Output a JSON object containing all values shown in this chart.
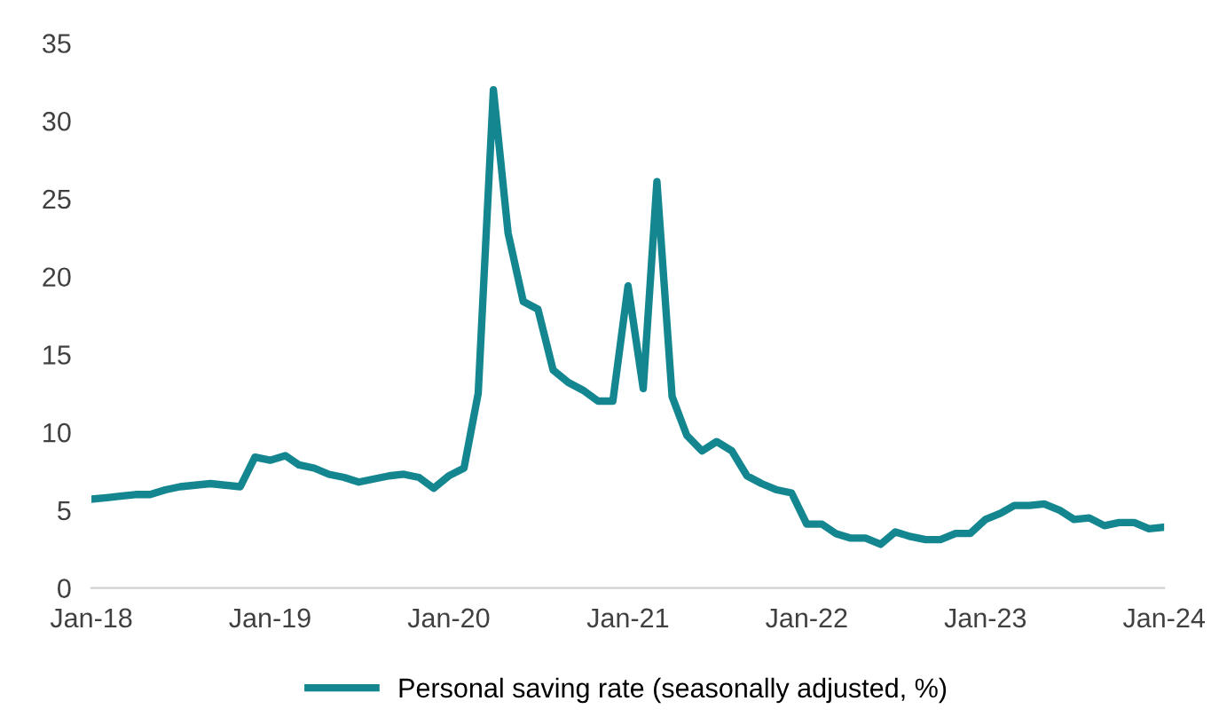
{
  "chart_data": {
    "type": "line",
    "x": [
      "2018-01",
      "2018-02",
      "2018-03",
      "2018-04",
      "2018-05",
      "2018-06",
      "2018-07",
      "2018-08",
      "2018-09",
      "2018-10",
      "2018-11",
      "2018-12",
      "2019-01",
      "2019-02",
      "2019-03",
      "2019-04",
      "2019-05",
      "2019-06",
      "2019-07",
      "2019-08",
      "2019-09",
      "2019-10",
      "2019-11",
      "2019-12",
      "2020-01",
      "2020-02",
      "2020-03",
      "2020-04",
      "2020-05",
      "2020-06",
      "2020-07",
      "2020-08",
      "2020-09",
      "2020-10",
      "2020-11",
      "2020-12",
      "2021-01",
      "2021-02",
      "2021-03",
      "2021-04",
      "2021-05",
      "2021-06",
      "2021-07",
      "2021-08",
      "2021-09",
      "2021-10",
      "2021-11",
      "2021-12",
      "2022-01",
      "2022-02",
      "2022-03",
      "2022-04",
      "2022-05",
      "2022-06",
      "2022-07",
      "2022-08",
      "2022-09",
      "2022-10",
      "2022-11",
      "2022-12",
      "2023-01",
      "2023-02",
      "2023-03",
      "2023-04",
      "2023-05",
      "2023-06",
      "2023-07",
      "2023-08",
      "2023-09",
      "2023-10",
      "2023-11",
      "2023-12",
      "2024-01"
    ],
    "series": [
      {
        "name": "Personal saving rate (seasonally adjusted, %)",
        "color": "#13868f",
        "values": [
          5.7,
          5.8,
          5.9,
          6.0,
          6.0,
          6.3,
          6.5,
          6.6,
          6.7,
          6.6,
          6.5,
          8.4,
          8.2,
          8.5,
          7.9,
          7.7,
          7.3,
          7.1,
          6.8,
          7.0,
          7.2,
          7.3,
          7.1,
          6.4,
          7.2,
          7.7,
          12.5,
          32.0,
          22.8,
          18.4,
          17.9,
          14.0,
          13.2,
          12.7,
          12.0,
          12.0,
          19.4,
          12.8,
          26.1,
          12.3,
          9.8,
          8.8,
          9.4,
          8.8,
          7.2,
          6.7,
          6.3,
          6.1,
          4.1,
          4.1,
          3.5,
          3.2,
          3.2,
          2.8,
          3.6,
          3.3,
          3.1,
          3.1,
          3.5,
          3.5,
          4.4,
          4.8,
          5.3,
          5.3,
          5.4,
          5.0,
          4.4,
          4.5,
          4.0,
          4.2,
          4.2,
          3.8,
          3.9
        ]
      }
    ],
    "xlim": [
      "2018-01",
      "2024-01"
    ],
    "xticks": [
      {
        "value": "2018-01",
        "label": "Jan-18"
      },
      {
        "value": "2019-01",
        "label": "Jan-19"
      },
      {
        "value": "2020-01",
        "label": "Jan-20"
      },
      {
        "value": "2021-01",
        "label": "Jan-21"
      },
      {
        "value": "2022-01",
        "label": "Jan-22"
      },
      {
        "value": "2023-01",
        "label": "Jan-23"
      },
      {
        "value": "2024-01",
        "label": "Jan-24"
      }
    ],
    "ylim": [
      0,
      35
    ],
    "yticks": [
      0,
      5,
      10,
      15,
      20,
      25,
      30,
      35
    ],
    "grid": false,
    "legend": "bottom",
    "line_style": "solid",
    "marker": "none"
  }
}
